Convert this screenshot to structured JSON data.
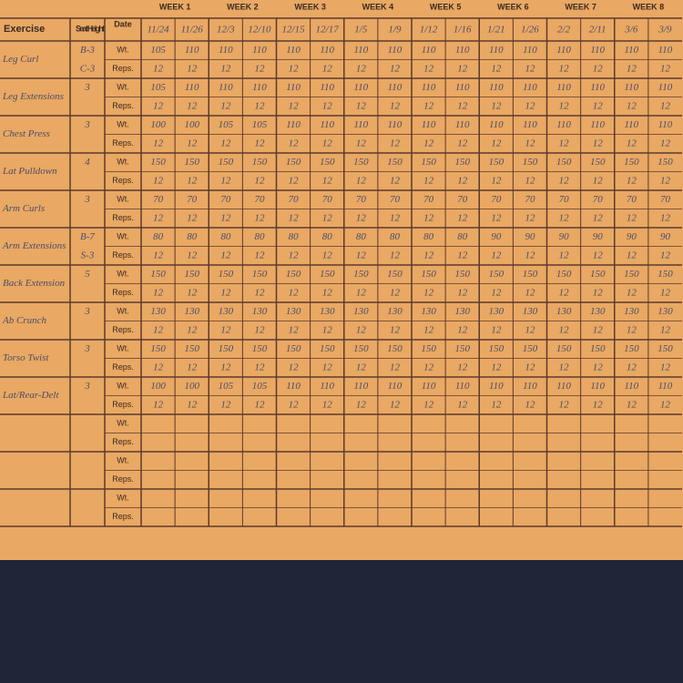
{
  "headers": {
    "exercise": "Exercise",
    "seat": "Seat Height",
    "date": "Date"
  },
  "weeks": [
    "WEEK 1",
    "WEEK 2",
    "WEEK 3",
    "WEEK 4",
    "WEEK 5",
    "WEEK 6",
    "WEEK 7",
    "WEEK 8"
  ],
  "dates": [
    "11/24",
    "11/26",
    "12/3",
    "12/10",
    "12/15",
    "12/17",
    "1/5",
    "1/9",
    "1/12",
    "1/16",
    "1/21",
    "1/26",
    "2/2",
    "2/11",
    "3/6",
    "3/9"
  ],
  "row_labels": {
    "weight": "Wt.",
    "reps": "Reps."
  },
  "blocks": [
    {
      "exercise": "Leg Curl",
      "seat": [
        "B-3",
        "C-3"
      ],
      "weights": [
        105,
        110,
        110,
        110,
        110,
        110,
        110,
        110,
        110,
        110,
        110,
        110,
        110,
        110,
        110,
        110
      ],
      "reps": [
        12,
        12,
        12,
        12,
        12,
        12,
        12,
        12,
        12,
        12,
        12,
        12,
        12,
        12,
        12,
        12
      ]
    },
    {
      "exercise": "Leg Extensions",
      "seat": [
        "3"
      ],
      "weights": [
        105,
        110,
        110,
        110,
        110,
        110,
        110,
        110,
        110,
        110,
        110,
        110,
        110,
        110,
        110,
        110
      ],
      "reps": [
        12,
        12,
        12,
        12,
        12,
        12,
        12,
        12,
        12,
        12,
        12,
        12,
        12,
        12,
        12,
        12
      ]
    },
    {
      "exercise": "Chest Press",
      "seat": [
        "3"
      ],
      "weights": [
        100,
        100,
        105,
        105,
        110,
        110,
        110,
        110,
        110,
        110,
        110,
        110,
        110,
        110,
        110,
        110
      ],
      "reps": [
        12,
        12,
        12,
        12,
        12,
        12,
        12,
        12,
        12,
        12,
        12,
        12,
        12,
        12,
        12,
        12
      ]
    },
    {
      "exercise": "Lat Pulldown",
      "seat": [
        "4"
      ],
      "weights": [
        150,
        150,
        150,
        150,
        150,
        150,
        150,
        150,
        150,
        150,
        150,
        150,
        150,
        150,
        150,
        150
      ],
      "reps": [
        12,
        12,
        12,
        12,
        12,
        12,
        12,
        12,
        12,
        12,
        12,
        12,
        12,
        12,
        12,
        12
      ]
    },
    {
      "exercise": "Arm Curls",
      "seat": [
        "3"
      ],
      "weights": [
        70,
        70,
        70,
        70,
        70,
        70,
        70,
        70,
        70,
        70,
        70,
        70,
        70,
        70,
        70,
        70
      ],
      "reps": [
        12,
        12,
        12,
        12,
        12,
        12,
        12,
        12,
        12,
        12,
        12,
        12,
        12,
        12,
        12,
        12
      ]
    },
    {
      "exercise": "Arm Extensions",
      "seat": [
        "B-7",
        "S-3"
      ],
      "weights": [
        80,
        80,
        80,
        80,
        80,
        80,
        80,
        80,
        80,
        80,
        90,
        90,
        90,
        90,
        90,
        90
      ],
      "reps": [
        12,
        12,
        12,
        12,
        12,
        12,
        12,
        12,
        12,
        12,
        12,
        12,
        12,
        12,
        12,
        12
      ]
    },
    {
      "exercise": "Back Extension",
      "seat": [
        "5"
      ],
      "weights": [
        150,
        150,
        150,
        150,
        150,
        150,
        150,
        150,
        150,
        150,
        150,
        150,
        150,
        150,
        150,
        150
      ],
      "reps": [
        12,
        12,
        12,
        12,
        12,
        12,
        12,
        12,
        12,
        12,
        12,
        12,
        12,
        12,
        12,
        12
      ]
    },
    {
      "exercise": "Ab Crunch",
      "seat": [
        "3"
      ],
      "weights": [
        130,
        130,
        130,
        130,
        130,
        130,
        130,
        130,
        130,
        130,
        130,
        130,
        130,
        130,
        130,
        130
      ],
      "reps": [
        12,
        12,
        12,
        12,
        12,
        12,
        12,
        12,
        12,
        12,
        12,
        12,
        12,
        12,
        12,
        12
      ]
    },
    {
      "exercise": "Torso Twist",
      "seat": [
        "3"
      ],
      "weights": [
        150,
        150,
        150,
        150,
        150,
        150,
        150,
        150,
        150,
        150,
        150,
        150,
        150,
        150,
        150,
        150
      ],
      "reps": [
        12,
        12,
        12,
        12,
        12,
        12,
        12,
        12,
        12,
        12,
        12,
        12,
        12,
        12,
        12,
        12
      ]
    },
    {
      "exercise": "Lat/Rear-Delt",
      "seat": [
        "3"
      ],
      "weights": [
        100,
        100,
        105,
        105,
        110,
        110,
        110,
        110,
        110,
        110,
        110,
        110,
        110,
        110,
        110,
        110
      ],
      "reps": [
        12,
        12,
        12,
        12,
        12,
        12,
        12,
        12,
        12,
        12,
        12,
        12,
        12,
        12,
        12,
        12
      ]
    },
    {},
    {},
    {}
  ]
}
